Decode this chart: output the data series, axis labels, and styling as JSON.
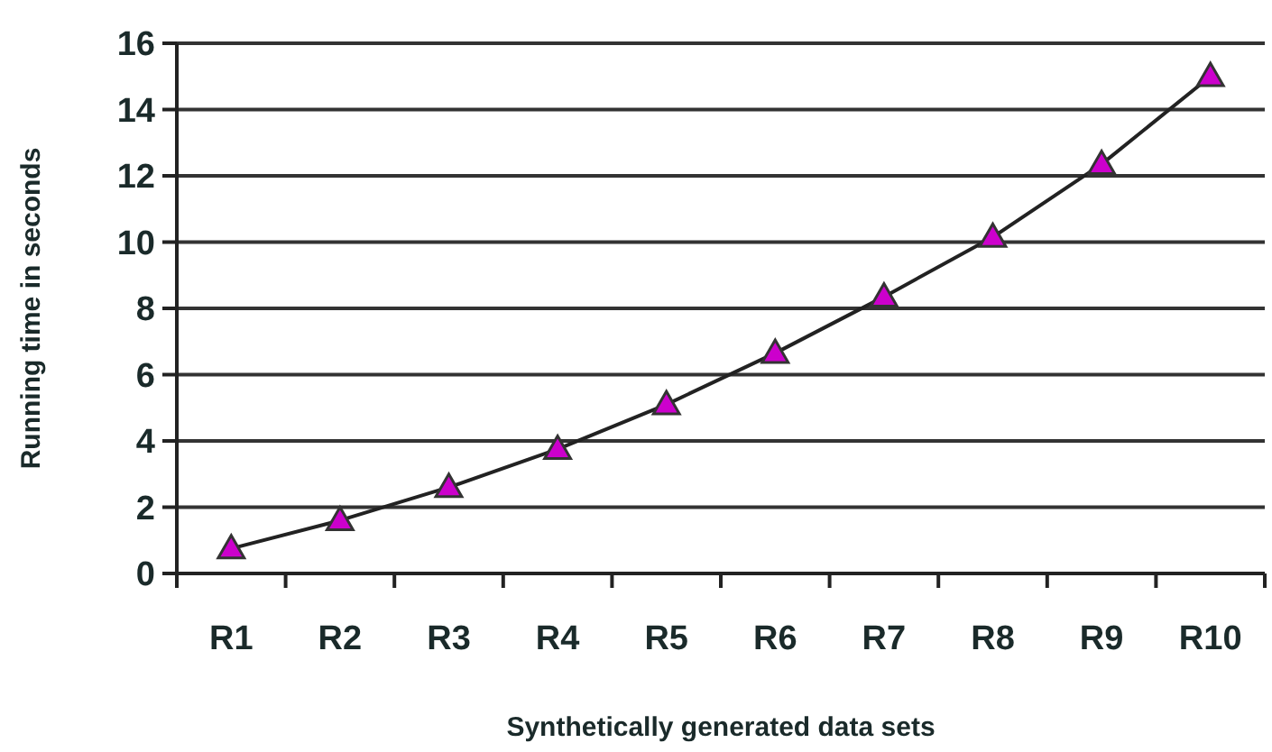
{
  "chart_data": {
    "type": "line",
    "xlabel": "Synthetically generated data sets",
    "ylabel": "Running time in seconds",
    "categories": [
      "R1",
      "R2",
      "R3",
      "R4",
      "R5",
      "R6",
      "R7",
      "R8",
      "R9",
      "R10"
    ],
    "series": [
      {
        "color": "#cc00cc",
        "values": [
          0.75,
          1.6,
          2.6,
          3.75,
          5.1,
          6.65,
          8.35,
          10.15,
          12.35,
          15.0
        ]
      }
    ],
    "ylim": [
      0,
      16
    ],
    "yticks": [
      0,
      2,
      4,
      6,
      8,
      10,
      12,
      14,
      16
    ],
    "grid": "y",
    "marker": "triangle",
    "line_style": "solid"
  }
}
